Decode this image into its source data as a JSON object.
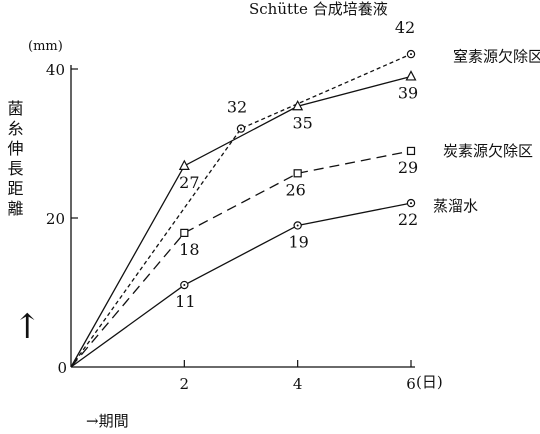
{
  "chart_data": {
    "type": "line",
    "ylabel_unit": "(mm)",
    "ylabel": "菌糸伸長距離",
    "y_arrow": "↑",
    "xlabel": "→期間",
    "x_unit": "(日)",
    "xlim": [
      0,
      6
    ],
    "ylim": [
      0,
      40
    ],
    "x_ticks": [
      {
        "v": 2,
        "label": "2"
      },
      {
        "v": 4,
        "label": "4"
      },
      {
        "v": 6,
        "label": "6"
      }
    ],
    "y_ticks": [
      {
        "v": 0,
        "label": "0"
      },
      {
        "v": 20,
        "label": "20"
      },
      {
        "v": 40,
        "label": "40"
      }
    ],
    "series": [
      {
        "name": "Schütte 合成培養液",
        "dash": "short",
        "marker": "circle",
        "points": [
          {
            "x": 0,
            "y": 0,
            "label": ""
          },
          {
            "x": 3,
            "y": 32,
            "label": "32"
          },
          {
            "x": 6,
            "y": 42,
            "label": "42"
          }
        ]
      },
      {
        "name": "窒素源欠除区",
        "dash": "solid",
        "marker": "triangle",
        "points": [
          {
            "x": 0,
            "y": 0,
            "label": ""
          },
          {
            "x": 2,
            "y": 27,
            "label": "27"
          },
          {
            "x": 4,
            "y": 35,
            "label": "35"
          },
          {
            "x": 6,
            "y": 39,
            "label": "39"
          }
        ]
      },
      {
        "name": "炭素源欠除区",
        "dash": "long",
        "marker": "square",
        "points": [
          {
            "x": 0,
            "y": 0,
            "label": ""
          },
          {
            "x": 2,
            "y": 18,
            "label": "18"
          },
          {
            "x": 4,
            "y": 26,
            "label": "26"
          },
          {
            "x": 6,
            "y": 29,
            "label": "29"
          }
        ]
      },
      {
        "name": "蒸溜水",
        "dash": "solid",
        "marker": "circle",
        "points": [
          {
            "x": 0,
            "y": 0,
            "label": ""
          },
          {
            "x": 2,
            "y": 11,
            "label": "11"
          },
          {
            "x": 4,
            "y": 19,
            "label": "19"
          },
          {
            "x": 6,
            "y": 22,
            "label": "22"
          }
        ]
      }
    ]
  }
}
